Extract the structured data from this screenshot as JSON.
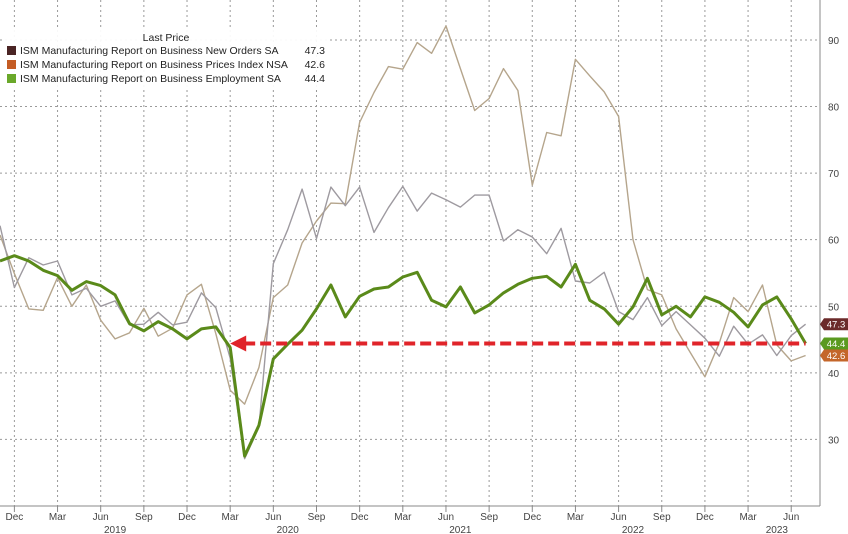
{
  "chart_data": {
    "type": "line",
    "legend_title": "Last Price",
    "legend_position": "top-left",
    "grid": true,
    "y_axis_side": "right",
    "ylim": [
      20,
      96
    ],
    "yticks": [
      30,
      40,
      50,
      60,
      70,
      80,
      90
    ],
    "xlim": [
      "2018-11",
      "2023-08"
    ],
    "x_ticks_months": [
      {
        "label": "Dec",
        "date": "2018-12"
      },
      {
        "label": "Mar",
        "date": "2019-03"
      },
      {
        "label": "Jun",
        "date": "2019-06"
      },
      {
        "label": "Sep",
        "date": "2019-09"
      },
      {
        "label": "Dec",
        "date": "2019-12"
      },
      {
        "label": "Mar",
        "date": "2020-03"
      },
      {
        "label": "Jun",
        "date": "2020-06"
      },
      {
        "label": "Sep",
        "date": "2020-09"
      },
      {
        "label": "Dec",
        "date": "2020-12"
      },
      {
        "label": "Mar",
        "date": "2021-03"
      },
      {
        "label": "Jun",
        "date": "2021-06"
      },
      {
        "label": "Sep",
        "date": "2021-09"
      },
      {
        "label": "Dec",
        "date": "2021-12"
      },
      {
        "label": "Mar",
        "date": "2022-03"
      },
      {
        "label": "Jun",
        "date": "2022-06"
      },
      {
        "label": "Sep",
        "date": "2022-09"
      },
      {
        "label": "Dec",
        "date": "2022-12"
      },
      {
        "label": "Mar",
        "date": "2023-03"
      },
      {
        "label": "Jun",
        "date": "2023-06"
      }
    ],
    "x_ticks_years": [
      {
        "label": "2019",
        "date": "2019-07"
      },
      {
        "label": "2020",
        "date": "2020-07"
      },
      {
        "label": "2021",
        "date": "2021-07"
      },
      {
        "label": "2022",
        "date": "2022-07"
      },
      {
        "label": "2023",
        "date": "2023-05"
      }
    ],
    "x": [
      "2018-11",
      "2018-12",
      "2019-01",
      "2019-02",
      "2019-03",
      "2019-04",
      "2019-05",
      "2019-06",
      "2019-07",
      "2019-08",
      "2019-09",
      "2019-10",
      "2019-11",
      "2019-12",
      "2020-01",
      "2020-02",
      "2020-03",
      "2020-04",
      "2020-05",
      "2020-06",
      "2020-07",
      "2020-08",
      "2020-09",
      "2020-10",
      "2020-11",
      "2020-12",
      "2021-01",
      "2021-02",
      "2021-03",
      "2021-04",
      "2021-05",
      "2021-06",
      "2021-07",
      "2021-08",
      "2021-09",
      "2021-10",
      "2021-11",
      "2021-12",
      "2022-01",
      "2022-02",
      "2022-03",
      "2022-04",
      "2022-05",
      "2022-06",
      "2022-07",
      "2022-08",
      "2022-09",
      "2022-10",
      "2022-11",
      "2022-12",
      "2023-01",
      "2023-02",
      "2023-03",
      "2023-04",
      "2023-05",
      "2023-06",
      "2023-07"
    ],
    "series": [
      {
        "name": "ISM Manufacturing Report on Business New Orders SA",
        "last_value": "47.3",
        "legend_color": "#4a2424",
        "line_color": "#9e9aa0",
        "values": [
          62.1,
          52.8,
          57.3,
          56.2,
          56.8,
          51.7,
          52.7,
          50.0,
          50.8,
          47.2,
          47.3,
          49.1,
          47.2,
          47.6,
          52.0,
          49.8,
          42.2,
          27.1,
          31.8,
          56.4,
          61.5,
          67.6,
          60.2,
          67.9,
          65.1,
          67.9,
          61.1,
          64.8,
          68.0,
          64.3,
          67.0,
          66.0,
          64.9,
          66.7,
          66.7,
          59.8,
          61.5,
          60.4,
          57.9,
          61.7,
          53.8,
          53.5,
          55.1,
          49.2,
          48.0,
          51.3,
          47.1,
          49.2,
          47.2,
          45.2,
          42.5,
          47.0,
          44.3,
          45.7,
          42.6,
          45.6,
          47.3
        ]
      },
      {
        "name": "ISM Manufacturing Report on Business Prices Index NSA",
        "last_value": "42.6",
        "legend_color": "#c45c24",
        "line_color": "#b5a58c",
        "values": [
          60.7,
          54.9,
          49.6,
          49.4,
          54.3,
          50.0,
          53.2,
          47.9,
          45.1,
          46.0,
          49.7,
          45.5,
          46.7,
          51.7,
          53.3,
          45.9,
          37.4,
          35.3,
          40.8,
          51.3,
          53.2,
          59.5,
          62.8,
          65.5,
          65.4,
          77.6,
          82.1,
          86.0,
          85.6,
          89.6,
          88.0,
          92.1,
          85.7,
          79.4,
          81.2,
          85.7,
          82.4,
          68.2,
          76.1,
          75.6,
          87.1,
          84.6,
          82.2,
          78.5,
          60.0,
          52.5,
          51.7,
          46.6,
          43.0,
          39.4,
          44.5,
          51.3,
          49.2,
          53.2,
          44.2,
          41.8,
          42.6
        ]
      },
      {
        "name": "ISM Manufacturing Report on Business Employment SA",
        "last_value": "44.4",
        "legend_color": "#6aa82a",
        "line_color": "#5a8a1a",
        "values": [
          56.8,
          57.6,
          56.8,
          55.4,
          54.6,
          52.4,
          53.7,
          53.1,
          51.7,
          47.4,
          46.3,
          47.7,
          46.6,
          45.1,
          46.6,
          46.9,
          43.8,
          27.5,
          32.1,
          42.1,
          44.3,
          46.4,
          49.6,
          53.2,
          48.4,
          51.5,
          52.6,
          52.9,
          54.4,
          55.1,
          50.9,
          49.9,
          52.9,
          49.0,
          50.2,
          52.0,
          53.3,
          54.2,
          54.5,
          52.9,
          56.3,
          50.9,
          49.6,
          47.3,
          49.9,
          54.2,
          48.7,
          50.0,
          48.4,
          51.4,
          50.6,
          49.1,
          46.9,
          50.2,
          51.4,
          48.1,
          44.4
        ]
      }
    ],
    "end_labels": [
      {
        "text": "47.3",
        "color": "#6b2a2a"
      },
      {
        "text": "44.4",
        "color": "#5a9a20"
      },
      {
        "text": "42.6",
        "color": "#c4662a"
      }
    ],
    "reference_line": {
      "value": 44.4,
      "from": "2020-03",
      "to": "2023-07",
      "style": "dashed-arrow",
      "color": "#e0242a"
    }
  }
}
